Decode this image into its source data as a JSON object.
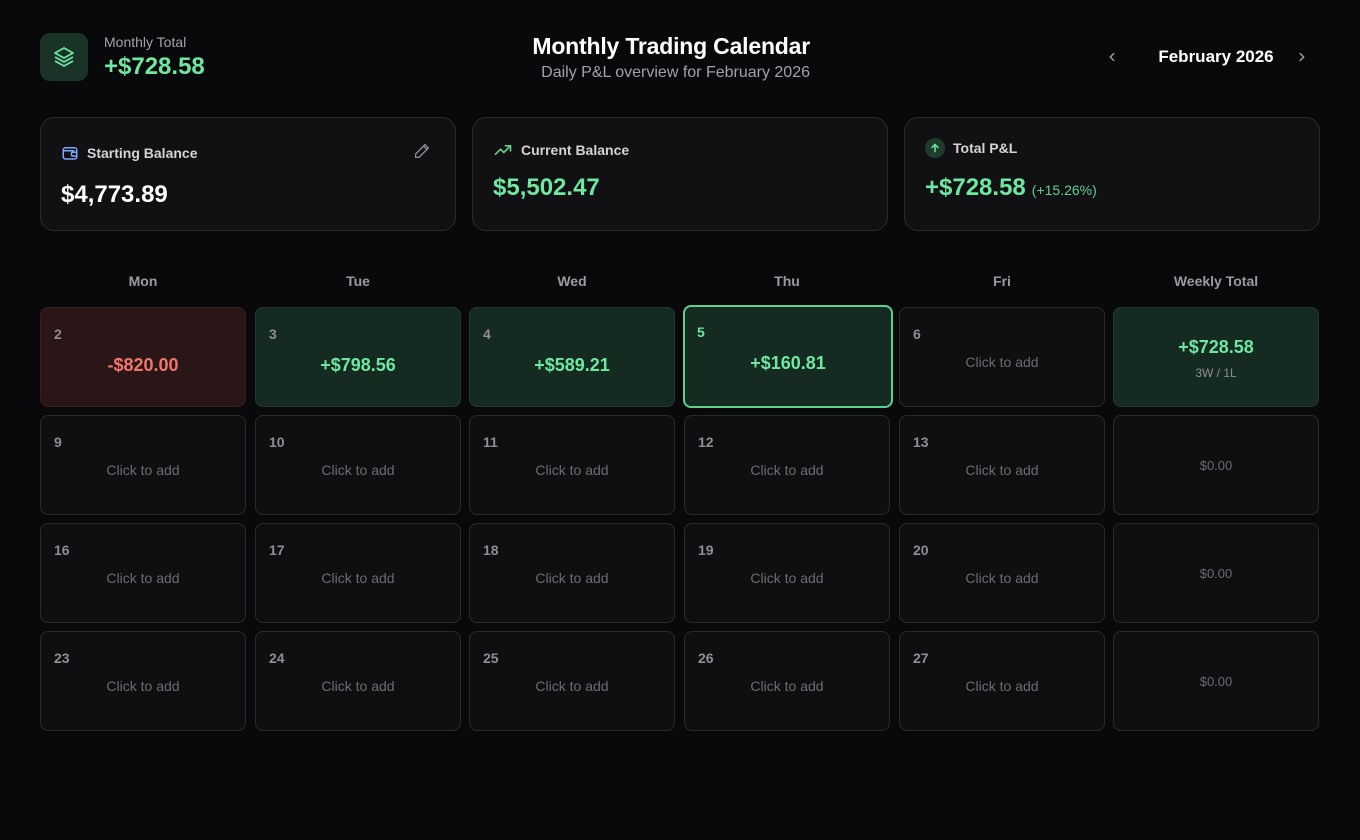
{
  "header": {
    "monthly_label": "Monthly Total",
    "monthly_value": "+$728.58",
    "title": "Monthly Trading Calendar",
    "subtitle": "Daily P&L overview for February 2026",
    "month_label": "February 2026"
  },
  "cards": {
    "starting": {
      "label": "Starting Balance",
      "value": "$4,773.89"
    },
    "current": {
      "label": "Current Balance",
      "value": "$5,502.47"
    },
    "total": {
      "label": "Total P&L",
      "value": "+$728.58",
      "pct": "(+15.26%)"
    }
  },
  "weekdays": [
    "Mon",
    "Tue",
    "Wed",
    "Thu",
    "Fri",
    "Weekly Total"
  ],
  "add_hint": "Click to add",
  "weeks": [
    {
      "days": [
        {
          "day": "2",
          "pnl": "-$820.00",
          "status": "loss"
        },
        {
          "day": "3",
          "pnl": "+$798.56",
          "status": "win"
        },
        {
          "day": "4",
          "pnl": "+$589.21",
          "status": "win"
        },
        {
          "day": "5",
          "pnl": "+$160.81",
          "status": "today"
        },
        {
          "day": "6",
          "pnl": "",
          "status": "empty"
        }
      ],
      "total": "+$728.58",
      "record": "3W / 1L"
    },
    {
      "days": [
        {
          "day": "9",
          "pnl": "",
          "status": "empty"
        },
        {
          "day": "10",
          "pnl": "",
          "status": "empty"
        },
        {
          "day": "11",
          "pnl": "",
          "status": "empty"
        },
        {
          "day": "12",
          "pnl": "",
          "status": "empty"
        },
        {
          "day": "13",
          "pnl": "",
          "status": "empty"
        }
      ],
      "total": "$0.00",
      "record": ""
    },
    {
      "days": [
        {
          "day": "16",
          "pnl": "",
          "status": "empty"
        },
        {
          "day": "17",
          "pnl": "",
          "status": "empty"
        },
        {
          "day": "18",
          "pnl": "",
          "status": "empty"
        },
        {
          "day": "19",
          "pnl": "",
          "status": "empty"
        },
        {
          "day": "20",
          "pnl": "",
          "status": "empty"
        }
      ],
      "total": "$0.00",
      "record": ""
    },
    {
      "days": [
        {
          "day": "23",
          "pnl": "",
          "status": "empty"
        },
        {
          "day": "24",
          "pnl": "",
          "status": "empty"
        },
        {
          "day": "25",
          "pnl": "",
          "status": "empty"
        },
        {
          "day": "26",
          "pnl": "",
          "status": "empty"
        },
        {
          "day": "27",
          "pnl": "",
          "status": "empty"
        }
      ],
      "total": "$0.00",
      "record": ""
    }
  ],
  "colors": {
    "accent": "#6ee7a0",
    "loss": "#f0766d",
    "background": "#09090b"
  },
  "icons": {
    "logo": "layers-icon",
    "prev": "chevron-left-icon",
    "next": "chevron-right-icon",
    "wallet": "wallet-icon",
    "edit": "pencil-icon",
    "trend": "trending-up-icon",
    "up": "arrow-up-icon"
  }
}
